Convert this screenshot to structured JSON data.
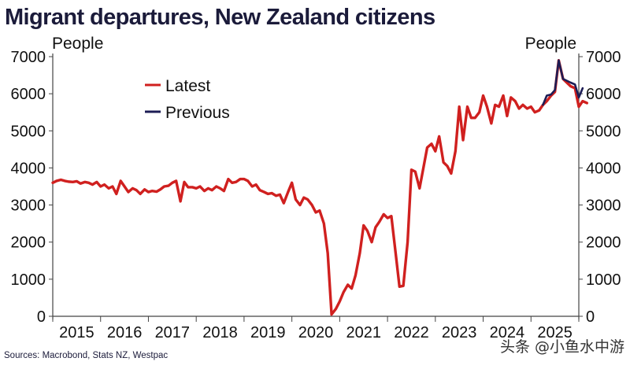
{
  "chart_data": {
    "type": "line",
    "title": "Migrant departures, New Zealand citizens",
    "ylabel_left": "People",
    "ylabel_right": "People",
    "ylim": [
      0,
      7000
    ],
    "yticks": [
      0,
      1000,
      2000,
      3000,
      4000,
      5000,
      6000,
      7000
    ],
    "xlim": [
      2014.5,
      2025.5
    ],
    "xticks": [
      "2015",
      "2016",
      "2017",
      "2018",
      "2019",
      "2020",
      "2021",
      "2022",
      "2023",
      "2024",
      "2025"
    ],
    "legend_position": "top-left",
    "series": [
      {
        "name": "Latest",
        "color": "#d0201f",
        "points": [
          [
            2014.5,
            3600
          ],
          [
            2014.58,
            3650
          ],
          [
            2014.67,
            3680
          ],
          [
            2014.75,
            3650
          ],
          [
            2014.83,
            3630
          ],
          [
            2014.92,
            3620
          ],
          [
            2015.0,
            3640
          ],
          [
            2015.08,
            3580
          ],
          [
            2015.17,
            3620
          ],
          [
            2015.25,
            3600
          ],
          [
            2015.33,
            3550
          ],
          [
            2015.42,
            3620
          ],
          [
            2015.5,
            3500
          ],
          [
            2015.58,
            3550
          ],
          [
            2015.67,
            3450
          ],
          [
            2015.75,
            3500
          ],
          [
            2015.83,
            3300
          ],
          [
            2015.92,
            3650
          ],
          [
            2016.0,
            3500
          ],
          [
            2016.08,
            3350
          ],
          [
            2016.17,
            3450
          ],
          [
            2016.25,
            3400
          ],
          [
            2016.33,
            3300
          ],
          [
            2016.42,
            3420
          ],
          [
            2016.5,
            3350
          ],
          [
            2016.58,
            3380
          ],
          [
            2016.67,
            3360
          ],
          [
            2016.75,
            3420
          ],
          [
            2016.83,
            3500
          ],
          [
            2016.92,
            3520
          ],
          [
            2017.0,
            3600
          ],
          [
            2017.08,
            3650
          ],
          [
            2017.17,
            3100
          ],
          [
            2017.25,
            3620
          ],
          [
            2017.33,
            3480
          ],
          [
            2017.42,
            3480
          ],
          [
            2017.5,
            3450
          ],
          [
            2017.58,
            3500
          ],
          [
            2017.67,
            3380
          ],
          [
            2017.75,
            3450
          ],
          [
            2017.83,
            3400
          ],
          [
            2017.92,
            3500
          ],
          [
            2018.0,
            3450
          ],
          [
            2018.08,
            3380
          ],
          [
            2018.17,
            3700
          ],
          [
            2018.25,
            3600
          ],
          [
            2018.33,
            3620
          ],
          [
            2018.42,
            3700
          ],
          [
            2018.5,
            3700
          ],
          [
            2018.58,
            3650
          ],
          [
            2018.67,
            3500
          ],
          [
            2018.75,
            3550
          ],
          [
            2018.83,
            3400
          ],
          [
            2018.92,
            3350
          ],
          [
            2019.0,
            3300
          ],
          [
            2019.08,
            3320
          ],
          [
            2019.17,
            3250
          ],
          [
            2019.25,
            3280
          ],
          [
            2019.33,
            3050
          ],
          [
            2019.42,
            3350
          ],
          [
            2019.5,
            3600
          ],
          [
            2019.58,
            3150
          ],
          [
            2019.67,
            3000
          ],
          [
            2019.75,
            3200
          ],
          [
            2019.83,
            3150
          ],
          [
            2019.92,
            3000
          ],
          [
            2020.0,
            2800
          ],
          [
            2020.08,
            2850
          ],
          [
            2020.17,
            2500
          ],
          [
            2020.25,
            1700
          ],
          [
            2020.33,
            50
          ],
          [
            2020.42,
            200
          ],
          [
            2020.5,
            400
          ],
          [
            2020.58,
            650
          ],
          [
            2020.67,
            850
          ],
          [
            2020.75,
            750
          ],
          [
            2020.83,
            1100
          ],
          [
            2020.92,
            1700
          ],
          [
            2021.0,
            2450
          ],
          [
            2021.08,
            2300
          ],
          [
            2021.17,
            2000
          ],
          [
            2021.25,
            2400
          ],
          [
            2021.33,
            2550
          ],
          [
            2021.42,
            2750
          ],
          [
            2021.5,
            2650
          ],
          [
            2021.58,
            2700
          ],
          [
            2021.67,
            1700
          ],
          [
            2021.75,
            800
          ],
          [
            2021.83,
            820
          ],
          [
            2021.92,
            2000
          ],
          [
            2022.0,
            3950
          ],
          [
            2022.08,
            3900
          ],
          [
            2022.17,
            3450
          ],
          [
            2022.25,
            4000
          ],
          [
            2022.33,
            4550
          ],
          [
            2022.42,
            4650
          ],
          [
            2022.5,
            4450
          ],
          [
            2022.58,
            4850
          ],
          [
            2022.67,
            4150
          ],
          [
            2022.75,
            4050
          ],
          [
            2022.83,
            3850
          ],
          [
            2022.92,
            4450
          ],
          [
            2023.0,
            5650
          ],
          [
            2023.08,
            4750
          ],
          [
            2023.17,
            5650
          ],
          [
            2023.25,
            5350
          ],
          [
            2023.33,
            5350
          ],
          [
            2023.42,
            5500
          ],
          [
            2023.5,
            5950
          ],
          [
            2023.58,
            5650
          ],
          [
            2023.67,
            5200
          ],
          [
            2023.75,
            5700
          ],
          [
            2023.83,
            5650
          ],
          [
            2023.92,
            5950
          ],
          [
            2024.0,
            5400
          ],
          [
            2024.08,
            5900
          ],
          [
            2024.17,
            5800
          ],
          [
            2024.25,
            5600
          ],
          [
            2024.33,
            5700
          ],
          [
            2024.42,
            5600
          ],
          [
            2024.5,
            5650
          ],
          [
            2024.58,
            5500
          ],
          [
            2024.67,
            5550
          ],
          [
            2024.75,
            5700
          ],
          [
            2024.83,
            5800
          ],
          [
            2024.92,
            5950
          ],
          [
            2025.0,
            6050
          ],
          [
            2025.08,
            6900
          ],
          [
            2025.17,
            6400
          ],
          [
            2025.25,
            6300
          ],
          [
            2025.33,
            6200
          ],
          [
            2025.42,
            6150
          ],
          [
            2025.5,
            5650
          ],
          [
            2025.58,
            5800
          ],
          [
            2025.67,
            5750
          ]
        ]
      },
      {
        "name": "Previous",
        "color": "#1d1d55",
        "points": [
          [
            2024.75,
            5700
          ],
          [
            2024.83,
            5950
          ],
          [
            2024.92,
            5980
          ],
          [
            2025.0,
            6100
          ],
          [
            2025.08,
            6900
          ],
          [
            2025.17,
            6400
          ],
          [
            2025.25,
            6350
          ],
          [
            2025.33,
            6300
          ],
          [
            2025.42,
            6250
          ],
          [
            2025.5,
            5900
          ],
          [
            2025.58,
            6150
          ]
        ]
      }
    ],
    "source": "Sources: Macrobond, Stats NZ, Westpac"
  },
  "watermark": "头条 @小鱼水中游"
}
